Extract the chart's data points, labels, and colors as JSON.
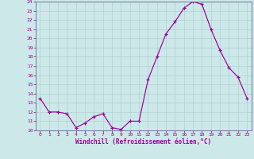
{
  "hours": [
    0,
    1,
    2,
    3,
    4,
    5,
    6,
    7,
    8,
    9,
    10,
    11,
    12,
    13,
    14,
    15,
    16,
    17,
    18,
    19,
    20,
    21,
    22,
    23
  ],
  "values": [
    13.5,
    12.0,
    12.0,
    11.8,
    10.3,
    10.8,
    11.5,
    11.8,
    10.3,
    10.1,
    11.0,
    11.0,
    15.5,
    18.0,
    20.5,
    21.8,
    23.3,
    24.0,
    23.7,
    21.0,
    18.7,
    16.8,
    15.8,
    13.5
  ],
  "ylim": [
    10,
    24
  ],
  "yticks": [
    10,
    11,
    12,
    13,
    14,
    15,
    16,
    17,
    18,
    19,
    20,
    21,
    22,
    23,
    24
  ],
  "xticks": [
    0,
    1,
    2,
    3,
    4,
    5,
    6,
    7,
    8,
    9,
    10,
    11,
    12,
    13,
    14,
    15,
    16,
    17,
    18,
    19,
    20,
    21,
    22,
    23
  ],
  "line_color": "#990099",
  "marker": "+",
  "bg_color": "#cce8e8",
  "grid_color": "#aacccc",
  "xlabel": "Windchill (Refroidissement éolien,°C)",
  "xlabel_color": "#990099",
  "tick_color": "#990099",
  "spine_color": "#666699"
}
